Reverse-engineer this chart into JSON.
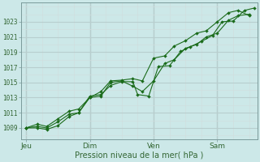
{
  "bg_color": "#cce8e8",
  "grid_major_color": "#b8cece",
  "grid_minor_color": "#d0dede",
  "line_color": "#1a6b1a",
  "marker_color": "#1a6b1a",
  "xlabel": "Pression niveau de la mer( hPa )",
  "yticks": [
    1009,
    1011,
    1013,
    1015,
    1017,
    1019,
    1021,
    1023
  ],
  "xtick_labels": [
    "Jeu",
    "Dim",
    "Ven",
    "Sam"
  ],
  "xtick_positions": [
    0,
    4,
    8,
    12
  ],
  "ylim": [
    1007.5,
    1025.5
  ],
  "xlim": [
    -0.3,
    14.5
  ],
  "vlines": [
    0,
    4,
    8,
    12
  ],
  "series1_x": [
    0,
    0.7,
    1.3,
    2.0,
    2.7,
    3.3,
    4.0,
    4.7,
    5.3,
    6.0,
    6.7,
    7.0,
    7.7,
    8.3,
    9.0,
    9.7,
    10.3,
    11.0,
    11.7,
    12.3,
    13.0,
    13.7,
    14.3
  ],
  "series1_y": [
    1009.0,
    1009.0,
    1008.8,
    1009.3,
    1010.5,
    1011.0,
    1013.2,
    1013.4,
    1014.6,
    1015.1,
    1015.1,
    1013.4,
    1013.2,
    1017.1,
    1017.2,
    1019.1,
    1019.7,
    1020.4,
    1021.2,
    1023.0,
    1023.1,
    1024.5,
    1024.8
  ],
  "series2_x": [
    0,
    0.7,
    1.3,
    2.0,
    2.7,
    3.3,
    4.0,
    4.7,
    5.3,
    6.0,
    6.7,
    7.3,
    8.0,
    8.7,
    9.3,
    10.0,
    10.7,
    11.3,
    12.0,
    12.7,
    13.3,
    14.0
  ],
  "series2_y": [
    1009.0,
    1009.2,
    1009.0,
    1009.8,
    1010.8,
    1011.0,
    1013.0,
    1013.2,
    1015.0,
    1015.2,
    1014.5,
    1013.8,
    1015.2,
    1017.5,
    1018.0,
    1019.5,
    1020.0,
    1021.0,
    1021.5,
    1023.2,
    1023.8,
    1024.0
  ],
  "series3_x": [
    0,
    0.7,
    1.3,
    2.0,
    2.7,
    3.3,
    4.0,
    4.7,
    5.3,
    6.0,
    6.7,
    7.3,
    8.0,
    8.7,
    9.3,
    10.0,
    10.7,
    11.3,
    12.0,
    12.7,
    13.3,
    14.0
  ],
  "series3_y": [
    1009.0,
    1009.5,
    1009.2,
    1010.2,
    1011.2,
    1011.5,
    1013.0,
    1013.8,
    1015.2,
    1015.3,
    1015.5,
    1015.2,
    1018.2,
    1018.5,
    1019.8,
    1020.5,
    1021.5,
    1021.8,
    1023.0,
    1024.2,
    1024.5,
    1023.8
  ]
}
